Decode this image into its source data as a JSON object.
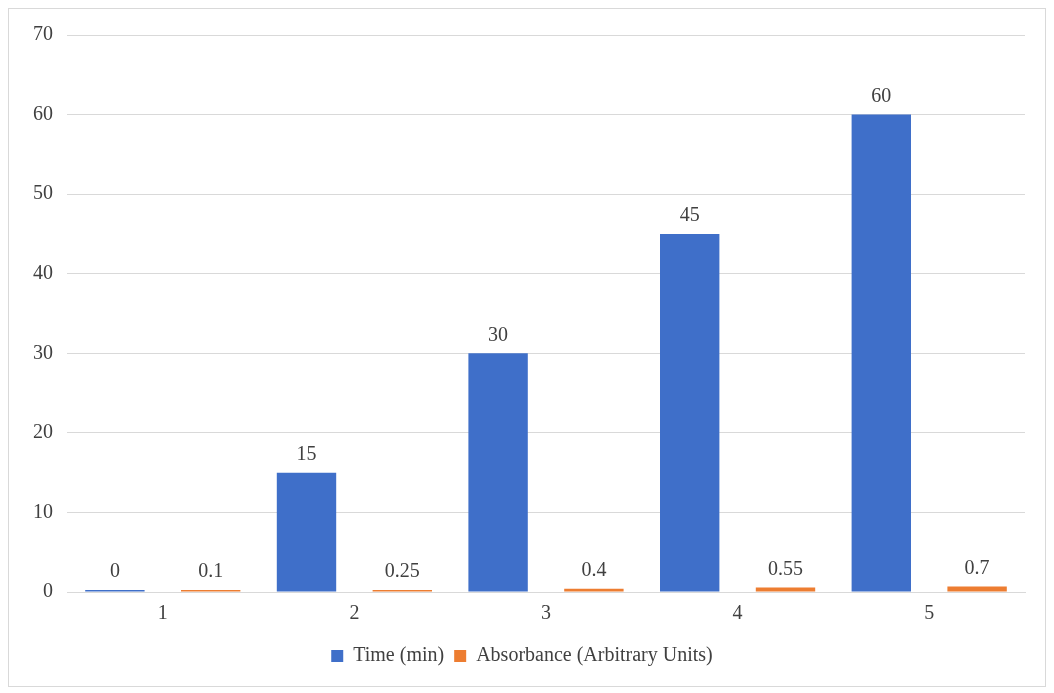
{
  "chart_data": {
    "type": "bar",
    "categories": [
      "1",
      "2",
      "3",
      "4",
      "5"
    ],
    "series": [
      {
        "name": "Time (min)",
        "color": "#3f6fc9",
        "values": [
          0,
          15,
          30,
          45,
          60
        ]
      },
      {
        "name": "Absorbance (Arbitrary Units)",
        "color": "#ed7d31",
        "values": [
          0.1,
          0.25,
          0.4,
          0.55,
          0.7
        ]
      }
    ],
    "ylim": [
      0,
      70
    ],
    "yticks": [
      0,
      10,
      20,
      30,
      40,
      50,
      60,
      70
    ],
    "grid": "y",
    "legend": "bottom",
    "data_labels": true
  }
}
